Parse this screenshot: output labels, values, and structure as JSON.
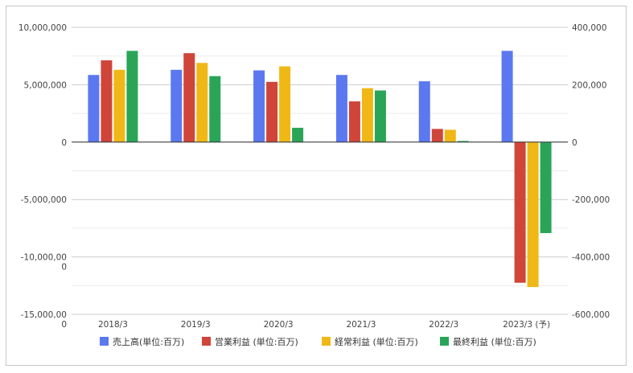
{
  "chart_data": {
    "type": "bar",
    "categories": [
      "2018/3",
      "2019/3",
      "2020/3",
      "2021/3",
      "2022/3",
      "2023/3 (予)"
    ],
    "series": [
      {
        "name": "売上高(単位:百万)",
        "axis": "left",
        "color": "#5b78f0",
        "values": [
          5850000,
          6300000,
          6250000,
          5850000,
          5300000,
          7950000
        ]
      },
      {
        "name": "営業利益 (単位:百万)",
        "axis": "right",
        "color": "#d0453a",
        "values": [
          285000,
          310000,
          210000,
          142000,
          46000,
          -490000
        ]
      },
      {
        "name": "経常利益 (単位:百万)",
        "axis": "right",
        "color": "#f0b816",
        "values": [
          252000,
          276000,
          264000,
          188000,
          43000,
          -505000
        ]
      },
      {
        "name": "最終利益 (単位:百万)",
        "axis": "right",
        "color": "#2aa558",
        "values": [
          318000,
          230000,
          50000,
          180000,
          4000,
          -317000
        ]
      }
    ],
    "left_axis": {
      "ylim": [
        -15000000,
        10000000
      ],
      "tick_labels": [
        "10,000,000",
        "5,000,000",
        "0",
        "-5,000,000",
        "-10,000,00\n0",
        "-15,000,00\n0"
      ]
    },
    "right_axis": {
      "ylim": [
        -600000,
        400000
      ],
      "tick_labels": [
        "400,000",
        "200,000",
        "0",
        "-200,000",
        "-400,000",
        "-600,000"
      ]
    },
    "grid": true,
    "legend_position": "bottom",
    "title": "",
    "xlabel": "",
    "ylabel": ""
  }
}
